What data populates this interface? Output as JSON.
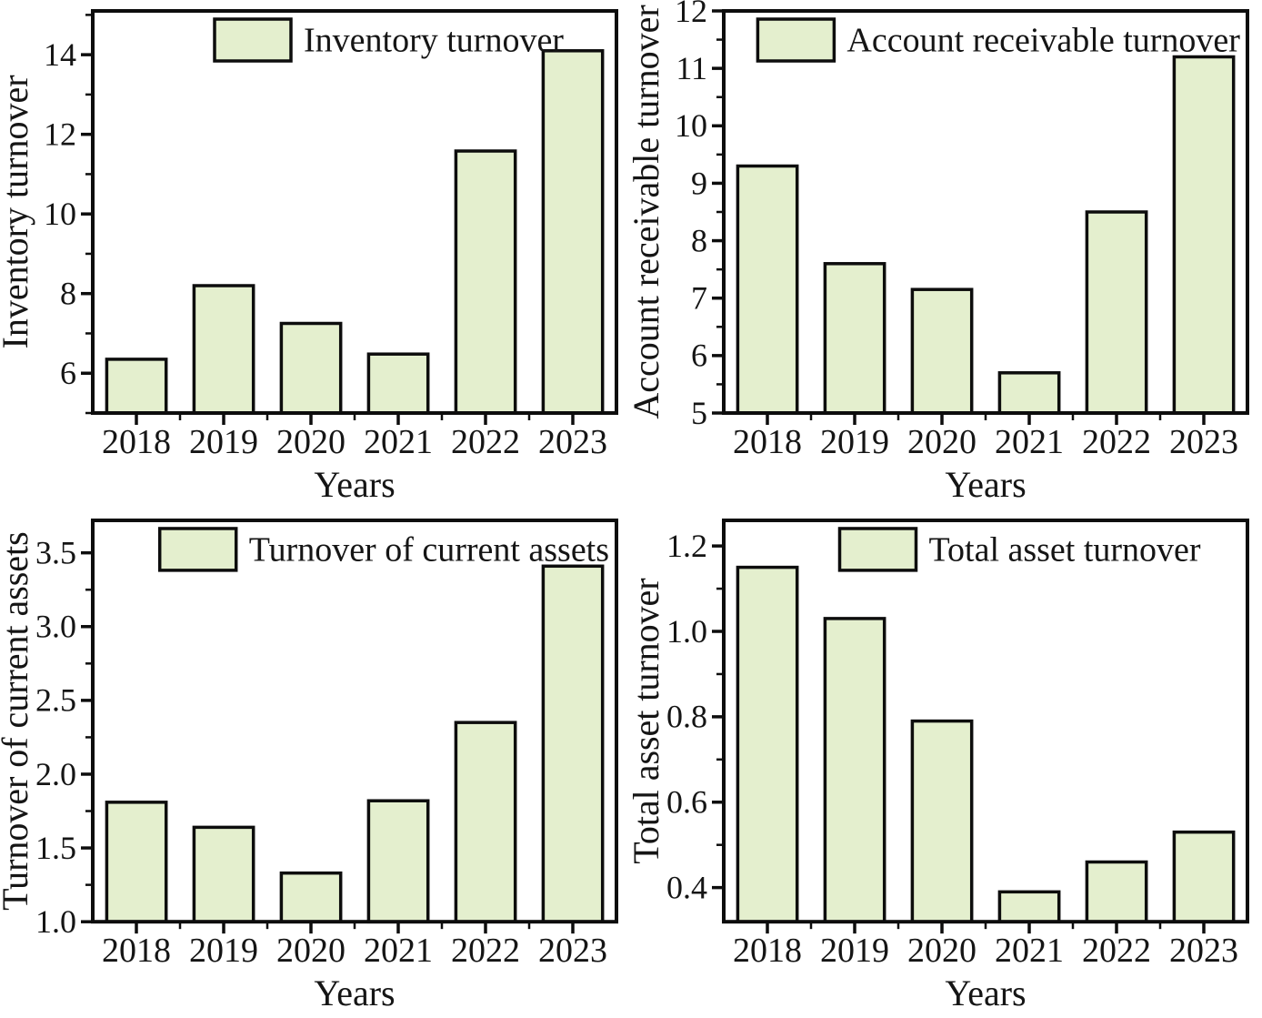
{
  "figure": {
    "background": "#ffffff"
  },
  "theme": {
    "bar_fill": "#e4efce",
    "bar_border": "#0d0d0d",
    "axis": "#0d0d0d",
    "text": "#151515"
  },
  "chart_data": [
    {
      "id": "inventory-turnover",
      "type": "bar",
      "legend": "Inventory turnover",
      "xlabel": "Years",
      "ylabel": "Inventory turnover",
      "categories": [
        "2018",
        "2019",
        "2020",
        "2021",
        "2022",
        "2023"
      ],
      "values": [
        6.35,
        8.2,
        7.25,
        6.48,
        11.58,
        14.1
      ],
      "ylim": [
        5.0,
        15.1
      ],
      "y_major_step": 2,
      "y_decimals": 0,
      "grid": false,
      "legend_position": "top-center"
    },
    {
      "id": "account-receivable-turnover",
      "type": "bar",
      "legend": "Account receivable turnover",
      "xlabel": "Years",
      "ylabel": "Account receivable turnover",
      "categories": [
        "2018",
        "2019",
        "2020",
        "2021",
        "2022",
        "2023"
      ],
      "values": [
        9.3,
        7.6,
        7.15,
        5.7,
        8.5,
        11.2
      ],
      "ylim": [
        5.0,
        12.0
      ],
      "y_major_step": 1,
      "y_decimals": 0,
      "grid": false,
      "legend_position": "top-center"
    },
    {
      "id": "turnover-of-current-assets",
      "type": "bar",
      "legend": "Turnover of current assets",
      "xlabel": "Years",
      "ylabel": "Turnover of current assets",
      "categories": [
        "2018",
        "2019",
        "2020",
        "2021",
        "2022",
        "2023"
      ],
      "values": [
        1.81,
        1.64,
        1.33,
        1.82,
        2.35,
        3.41
      ],
      "ylim": [
        1.0,
        3.72
      ],
      "y_major_step": 0.5,
      "y_decimals": 1,
      "grid": false,
      "legend_position": "top-center"
    },
    {
      "id": "total-asset-turnover",
      "type": "bar",
      "legend": "Total asset turnover",
      "xlabel": "Years",
      "ylabel": "Total asset turnover",
      "categories": [
        "2018",
        "2019",
        "2020",
        "2021",
        "2022",
        "2023"
      ],
      "values": [
        1.15,
        1.03,
        0.79,
        0.39,
        0.46,
        0.53
      ],
      "ylim": [
        0.32,
        1.26
      ],
      "y_major_step": 0.2,
      "y_decimals": 1,
      "grid": false,
      "legend_position": "top-center"
    }
  ]
}
